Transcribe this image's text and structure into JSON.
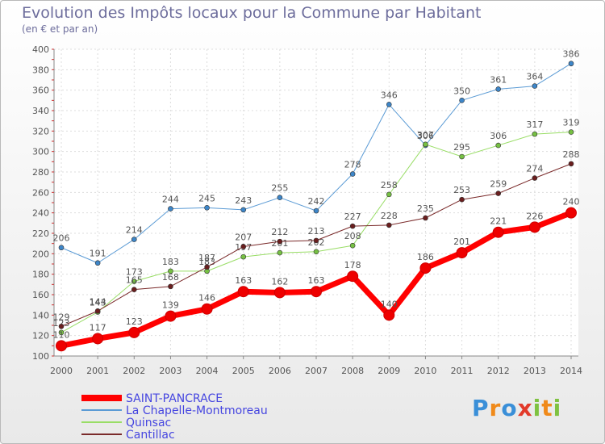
{
  "header": {
    "title": "Evolution des Impôts locaux pour la Commune par Habitant",
    "subtitle": "(en € et par an)"
  },
  "brand": {
    "name": "Proxiti",
    "letters": [
      "P",
      "r",
      "o",
      "x",
      "i",
      "t",
      "i"
    ],
    "colors": [
      "#3a8fd8",
      "#f08a1a",
      "#3a8fd8",
      "#e23a2a",
      "#7fc241",
      "#f08a1a",
      "#7fc241"
    ]
  },
  "chart_data": {
    "type": "line",
    "title": "Evolution des Impôts locaux pour la Commune par Habitant",
    "subtitle": "(en € et par an)",
    "xlabel": "",
    "ylabel": "",
    "x": [
      2000,
      2001,
      2002,
      2003,
      2004,
      2005,
      2006,
      2007,
      2008,
      2009,
      2010,
      2011,
      2012,
      2013,
      2014
    ],
    "x_labels": [
      "2000",
      "2001",
      "2002",
      "2003",
      "2004",
      "2005",
      "2006",
      "2007",
      "2008",
      "2009",
      "2010",
      "2011",
      "2012",
      "2013",
      "2014"
    ],
    "ylim": [
      100,
      400
    ],
    "yticks": [
      100,
      120,
      140,
      160,
      180,
      200,
      220,
      240,
      260,
      280,
      300,
      320,
      340,
      360,
      380,
      400
    ],
    "ytick_labels": [
      "100",
      "120",
      "140",
      "160",
      "180",
      "200",
      "220",
      "240",
      "260",
      "280",
      "300",
      "320",
      "340",
      "360",
      "380",
      "400"
    ],
    "grid": true,
    "legend_position": "bottom-left",
    "series": [
      {
        "name": "SAINT-PANCRACE",
        "color": "#ff0000",
        "marker_color": "#ee0000",
        "width": 7,
        "values": [
          110,
          117,
          123,
          139,
          146,
          163,
          162,
          163,
          178,
          140,
          186,
          201,
          221,
          226,
          240
        ],
        "labels": [
          "110",
          "117",
          "123",
          "139",
          "146",
          "163",
          "162",
          "163",
          "178",
          "140",
          "186",
          "201",
          "221",
          "226",
          "240"
        ]
      },
      {
        "name": "La Chapelle-Montmoreau",
        "color": "#5b9bd5",
        "marker_color": "#3d86c9",
        "width": 1,
        "values": [
          206,
          191,
          214,
          244,
          245,
          243,
          255,
          242,
          278,
          346,
          306,
          350,
          361,
          364,
          386
        ],
        "labels": [
          "206",
          "191",
          "214",
          "244",
          "245",
          "243",
          "255",
          "242",
          "278",
          "346",
          "306",
          "350",
          "361",
          "364",
          "386"
        ]
      },
      {
        "name": "Quinsac",
        "color": "#99dd66",
        "marker_color": "#76c043",
        "width": 1,
        "values": [
          123,
          143,
          173,
          183,
          183,
          197,
          201,
          202,
          208,
          258,
          307,
          295,
          306,
          317,
          319
        ],
        "labels": [
          "123",
          "143",
          "173",
          "183",
          "183",
          "197",
          "201",
          "202",
          "208",
          "258",
          "307",
          "295",
          "306",
          "317",
          "319"
        ]
      },
      {
        "name": "Cantillac",
        "color": "#7a2a2a",
        "marker_color": "#6a1e1e",
        "width": 1,
        "values": [
          129,
          144,
          165,
          168,
          187,
          207,
          212,
          213,
          227,
          228,
          235,
          253,
          259,
          274,
          288
        ],
        "labels": [
          "129",
          "144",
          "165",
          "168",
          "187",
          "207",
          "212",
          "213",
          "227",
          "228",
          "235",
          "253",
          "259",
          "274",
          "288"
        ]
      }
    ]
  }
}
